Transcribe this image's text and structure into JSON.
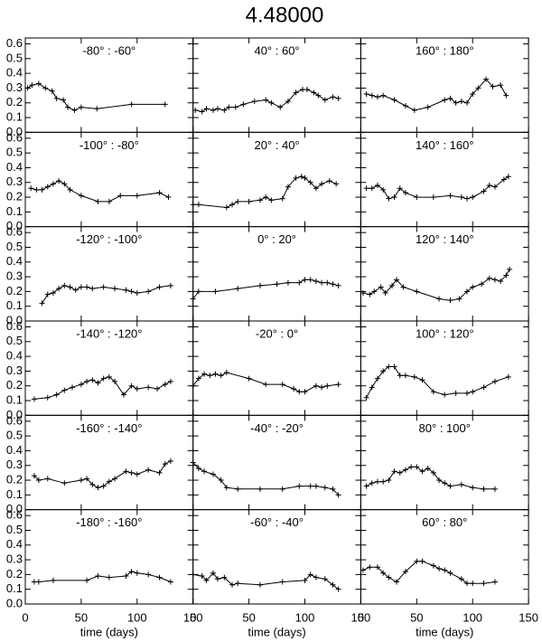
{
  "title": "4.48000",
  "chart_data": [
    {
      "type": "line",
      "title": "-80° : -60°",
      "x": [
        2,
        6,
        12,
        18,
        24,
        28,
        34,
        38,
        44,
        50,
        64,
        95,
        125
      ],
      "values": [
        0.3,
        0.32,
        0.33,
        0.3,
        0.28,
        0.23,
        0.22,
        0.17,
        0.15,
        0.17,
        0.16,
        0.19,
        0.19
      ],
      "color": "#000000",
      "xlim": [
        0,
        150
      ],
      "ylim": [
        0,
        0.64
      ],
      "xticks": [
        0,
        50,
        100,
        150
      ],
      "yticks": [
        {
          "value": 0,
          "label": "0.0"
        },
        0.1,
        0.2,
        0.3,
        0.4,
        0.5,
        0.6
      ]
    },
    {
      "type": "line",
      "title": "-100° : -80°",
      "x": [
        5,
        10,
        15,
        20,
        25,
        30,
        35,
        40,
        50,
        65,
        75,
        85,
        100,
        120,
        128
      ],
      "values": [
        0.26,
        0.25,
        0.25,
        0.27,
        0.29,
        0.31,
        0.29,
        0.25,
        0.21,
        0.17,
        0.17,
        0.21,
        0.21,
        0.23,
        0.2
      ],
      "color": "#000000",
      "xlim": [
        0,
        150
      ],
      "ylim": [
        0,
        0.64
      ],
      "xticks": [
        0,
        50,
        100,
        150
      ],
      "yticks": [
        {
          "value": 0,
          "label": "0.0"
        },
        0.1,
        0.2,
        0.3,
        0.4,
        0.5,
        0.6
      ]
    },
    {
      "type": "line",
      "title": "-120° : -100°",
      "x": [
        15,
        20,
        25,
        30,
        35,
        40,
        45,
        50,
        55,
        60,
        70,
        80,
        90,
        95,
        100,
        110,
        120,
        130
      ],
      "values": [
        0.12,
        0.18,
        0.19,
        0.22,
        0.24,
        0.23,
        0.21,
        0.23,
        0.23,
        0.22,
        0.23,
        0.22,
        0.21,
        0.2,
        0.19,
        0.2,
        0.23,
        0.24
      ],
      "color": "#000000",
      "xlim": [
        0,
        150
      ],
      "ylim": [
        0,
        0.64
      ],
      "xticks": [
        0,
        50,
        100,
        150
      ],
      "yticks": [
        {
          "value": 0,
          "label": "0.0"
        },
        0.1,
        0.2,
        0.3,
        0.4,
        0.5,
        0.6
      ]
    },
    {
      "type": "line",
      "title": "-140° : -120°",
      "x": [
        8,
        20,
        28,
        35,
        42,
        50,
        55,
        60,
        65,
        70,
        75,
        80,
        88,
        95,
        100,
        110,
        118,
        125,
        130
      ],
      "values": [
        0.11,
        0.12,
        0.14,
        0.17,
        0.19,
        0.21,
        0.23,
        0.24,
        0.22,
        0.25,
        0.26,
        0.23,
        0.14,
        0.2,
        0.18,
        0.19,
        0.18,
        0.21,
        0.23
      ],
      "color": "#000000",
      "xlim": [
        0,
        150
      ],
      "ylim": [
        0,
        0.64
      ],
      "xticks": [
        0,
        50,
        100,
        150
      ],
      "yticks": [
        {
          "value": 0,
          "label": "0.0"
        },
        0.1,
        0.2,
        0.3,
        0.4,
        0.5,
        0.6
      ]
    },
    {
      "type": "line",
      "title": "-160° : -140°",
      "x": [
        8,
        12,
        20,
        35,
        50,
        55,
        60,
        65,
        70,
        75,
        80,
        90,
        95,
        100,
        110,
        120,
        125,
        130
      ],
      "values": [
        0.23,
        0.2,
        0.21,
        0.18,
        0.2,
        0.21,
        0.17,
        0.15,
        0.16,
        0.19,
        0.21,
        0.26,
        0.25,
        0.24,
        0.27,
        0.25,
        0.31,
        0.33
      ],
      "color": "#000000",
      "xlim": [
        0,
        150
      ],
      "ylim": [
        0,
        0.64
      ],
      "xticks": [
        0,
        50,
        100,
        150
      ],
      "yticks": [
        {
          "value": 0,
          "label": "0.0"
        },
        0.1,
        0.2,
        0.3,
        0.4,
        0.5,
        0.6
      ]
    },
    {
      "type": "line",
      "title": "-180° : -160°",
      "x_label": "time (days)",
      "x": [
        8,
        12,
        25,
        55,
        65,
        75,
        90,
        95,
        100,
        110,
        120,
        130
      ],
      "values": [
        0.15,
        0.15,
        0.16,
        0.16,
        0.19,
        0.18,
        0.19,
        0.22,
        0.21,
        0.2,
        0.18,
        0.15
      ],
      "color": "#000000",
      "xlim": [
        0,
        150
      ],
      "ylim": [
        0,
        0.64
      ],
      "xticks": [
        0,
        50,
        100,
        150
      ],
      "yticks": [
        {
          "value": 0,
          "label": "0.0"
        },
        0.1,
        0.2,
        0.3,
        0.4,
        0.5,
        0.6
      ]
    },
    {
      "type": "line",
      "title": "40° : 60°",
      "x": [
        2,
        8,
        12,
        18,
        22,
        28,
        32,
        38,
        45,
        55,
        65,
        70,
        78,
        85,
        92,
        98,
        102,
        108,
        112,
        118,
        125,
        130
      ],
      "values": [
        0.15,
        0.14,
        0.16,
        0.15,
        0.16,
        0.15,
        0.17,
        0.17,
        0.19,
        0.21,
        0.22,
        0.2,
        0.17,
        0.21,
        0.27,
        0.29,
        0.29,
        0.27,
        0.25,
        0.22,
        0.24,
        0.23
      ],
      "color": "#000000",
      "xlim": [
        0,
        150
      ],
      "ylim": [
        0,
        0.64
      ],
      "xticks": [
        0,
        50,
        100,
        150
      ],
      "yticks": [
        {
          "value": 0,
          "label": "0.0"
        },
        0.1,
        0.2,
        0.3,
        0.4,
        0.5,
        0.6
      ]
    },
    {
      "type": "line",
      "title": "20° : 40°",
      "x": [
        0,
        5,
        30,
        35,
        40,
        50,
        60,
        65,
        70,
        80,
        85,
        92,
        97,
        100,
        105,
        110,
        115,
        122,
        128
      ],
      "values": [
        0.15,
        0.15,
        0.13,
        0.15,
        0.17,
        0.17,
        0.18,
        0.2,
        0.18,
        0.19,
        0.27,
        0.33,
        0.34,
        0.33,
        0.3,
        0.26,
        0.29,
        0.31,
        0.29
      ],
      "color": "#000000",
      "xlim": [
        0,
        150
      ],
      "ylim": [
        0,
        0.64
      ],
      "xticks": [
        0,
        50,
        100,
        150
      ],
      "yticks": [
        {
          "value": 0,
          "label": "0.0"
        },
        0.1,
        0.2,
        0.3,
        0.4,
        0.5,
        0.6
      ]
    },
    {
      "type": "line",
      "title": "0° : 20°",
      "x": [
        0,
        5,
        20,
        40,
        60,
        75,
        85,
        95,
        100,
        105,
        110,
        115,
        120,
        125,
        130
      ],
      "values": [
        0.15,
        0.2,
        0.2,
        0.22,
        0.24,
        0.25,
        0.26,
        0.26,
        0.28,
        0.28,
        0.27,
        0.26,
        0.26,
        0.25,
        0.24
      ],
      "color": "#000000",
      "xlim": [
        0,
        150
      ],
      "ylim": [
        0,
        0.64
      ],
      "xticks": [
        0,
        50,
        100,
        150
      ],
      "yticks": [
        {
          "value": 0,
          "label": "0.0"
        },
        0.1,
        0.2,
        0.3,
        0.4,
        0.5,
        0.6
      ]
    },
    {
      "type": "line",
      "title": "-20° : 0°",
      "x": [
        0,
        5,
        10,
        15,
        20,
        25,
        30,
        50,
        65,
        80,
        90,
        95,
        100,
        110,
        115,
        120,
        130
      ],
      "values": [
        0.2,
        0.25,
        0.28,
        0.27,
        0.28,
        0.27,
        0.29,
        0.25,
        0.21,
        0.21,
        0.18,
        0.16,
        0.16,
        0.2,
        0.19,
        0.2,
        0.21
      ],
      "color": "#000000",
      "xlim": [
        0,
        150
      ],
      "ylim": [
        0,
        0.64
      ],
      "xticks": [
        0,
        50,
        100,
        150
      ],
      "yticks": [
        {
          "value": 0,
          "label": "0.0"
        },
        0.1,
        0.2,
        0.3,
        0.4,
        0.5,
        0.6
      ]
    },
    {
      "type": "line",
      "title": "-40° : -20°",
      "x": [
        0,
        5,
        10,
        18,
        25,
        30,
        40,
        60,
        80,
        95,
        105,
        110,
        118,
        125,
        130
      ],
      "values": [
        0.32,
        0.28,
        0.26,
        0.24,
        0.2,
        0.15,
        0.14,
        0.14,
        0.14,
        0.16,
        0.16,
        0.16,
        0.15,
        0.14,
        0.1
      ],
      "color": "#000000",
      "xlim": [
        0,
        150
      ],
      "ylim": [
        0,
        0.64
      ],
      "xticks": [
        0,
        50,
        100,
        150
      ],
      "yticks": [
        {
          "value": 0,
          "label": "0.0"
        },
        0.1,
        0.2,
        0.3,
        0.4,
        0.5,
        0.6
      ]
    },
    {
      "type": "line",
      "title": "-60° : -40°",
      "x_label": "time (days)",
      "x": [
        0,
        8,
        12,
        18,
        22,
        28,
        35,
        40,
        60,
        80,
        100,
        105,
        110,
        118,
        125,
        130
      ],
      "values": [
        0.2,
        0.19,
        0.16,
        0.21,
        0.17,
        0.18,
        0.13,
        0.14,
        0.13,
        0.15,
        0.16,
        0.2,
        0.18,
        0.17,
        0.13,
        0.1
      ],
      "color": "#000000",
      "xlim": [
        0,
        150
      ],
      "ylim": [
        0,
        0.64
      ],
      "xticks": [
        0,
        50,
        100,
        150
      ],
      "yticks": [
        {
          "value": 0,
          "label": "0.0"
        },
        0.1,
        0.2,
        0.3,
        0.4,
        0.5,
        0.6
      ]
    },
    {
      "type": "line",
      "title": "160° : 180°",
      "x": [
        5,
        10,
        15,
        20,
        30,
        40,
        48,
        60,
        75,
        80,
        85,
        90,
        95,
        100,
        105,
        112,
        118,
        125,
        130
      ],
      "values": [
        0.26,
        0.25,
        0.24,
        0.25,
        0.22,
        0.18,
        0.15,
        0.17,
        0.22,
        0.23,
        0.2,
        0.21,
        0.2,
        0.26,
        0.3,
        0.36,
        0.31,
        0.32,
        0.25
      ],
      "color": "#000000",
      "xlim": [
        0,
        150
      ],
      "ylim": [
        0,
        0.64
      ],
      "xticks": [
        0,
        50,
        100,
        150
      ],
      "yticks": [
        {
          "value": 0,
          "label": "0.0"
        },
        0.1,
        0.2,
        0.3,
        0.4,
        0.5,
        0.6
      ]
    },
    {
      "type": "line",
      "title": "140° : 160°",
      "x": [
        5,
        10,
        15,
        20,
        25,
        30,
        35,
        40,
        50,
        65,
        80,
        90,
        95,
        100,
        110,
        115,
        120,
        128,
        132
      ],
      "values": [
        0.26,
        0.26,
        0.28,
        0.25,
        0.19,
        0.2,
        0.26,
        0.23,
        0.2,
        0.2,
        0.21,
        0.2,
        0.19,
        0.2,
        0.24,
        0.28,
        0.27,
        0.32,
        0.34
      ],
      "color": "#000000",
      "xlim": [
        0,
        150
      ],
      "ylim": [
        0,
        0.64
      ],
      "xticks": [
        0,
        50,
        100,
        150
      ],
      "yticks": [
        {
          "value": 0,
          "label": "0.0"
        },
        0.1,
        0.2,
        0.3,
        0.4,
        0.5,
        0.6
      ]
    },
    {
      "type": "line",
      "title": "120° : 140°",
      "x": [
        2,
        8,
        12,
        18,
        22,
        28,
        32,
        38,
        50,
        70,
        80,
        88,
        95,
        100,
        108,
        115,
        120,
        125,
        130,
        133
      ],
      "values": [
        0.19,
        0.18,
        0.2,
        0.23,
        0.19,
        0.24,
        0.28,
        0.23,
        0.2,
        0.15,
        0.14,
        0.15,
        0.2,
        0.23,
        0.25,
        0.29,
        0.28,
        0.27,
        0.31,
        0.35
      ],
      "color": "#000000",
      "xlim": [
        0,
        150
      ],
      "ylim": [
        0,
        0.64
      ],
      "xticks": [
        0,
        50,
        100,
        150
      ],
      "yticks": [
        {
          "value": 0,
          "label": "0.0"
        },
        0.1,
        0.2,
        0.3,
        0.4,
        0.5,
        0.6
      ]
    },
    {
      "type": "line",
      "title": "100° : 120°",
      "x": [
        5,
        10,
        15,
        20,
        25,
        30,
        35,
        40,
        48,
        55,
        65,
        75,
        85,
        95,
        100,
        110,
        120,
        132
      ],
      "values": [
        0.12,
        0.19,
        0.25,
        0.3,
        0.33,
        0.33,
        0.27,
        0.27,
        0.26,
        0.24,
        0.16,
        0.14,
        0.15,
        0.15,
        0.16,
        0.19,
        0.23,
        0.26
      ],
      "color": "#000000",
      "xlim": [
        0,
        150
      ],
      "ylim": [
        0,
        0.64
      ],
      "xticks": [
        0,
        50,
        100,
        150
      ],
      "yticks": [
        {
          "value": 0,
          "label": "0.0"
        },
        0.1,
        0.2,
        0.3,
        0.4,
        0.5,
        0.6
      ]
    },
    {
      "type": "line",
      "title": "80° : 100°",
      "x": [
        5,
        10,
        15,
        20,
        25,
        30,
        35,
        40,
        45,
        50,
        55,
        60,
        65,
        70,
        75,
        80,
        90,
        100,
        110,
        120
      ],
      "values": [
        0.16,
        0.18,
        0.19,
        0.19,
        0.2,
        0.26,
        0.25,
        0.27,
        0.29,
        0.29,
        0.26,
        0.28,
        0.25,
        0.2,
        0.18,
        0.16,
        0.17,
        0.15,
        0.14,
        0.14
      ],
      "color": "#000000",
      "xlim": [
        0,
        150
      ],
      "ylim": [
        0,
        0.64
      ],
      "xticks": [
        0,
        50,
        100,
        150
      ],
      "yticks": [
        {
          "value": 0,
          "label": "0.0"
        },
        0.1,
        0.2,
        0.3,
        0.4,
        0.5,
        0.6
      ]
    },
    {
      "type": "line",
      "title": "60° : 80°",
      "x_label": "time (days)",
      "x": [
        2,
        8,
        15,
        20,
        25,
        32,
        40,
        50,
        55,
        65,
        70,
        75,
        80,
        90,
        95,
        100,
        110,
        120
      ],
      "values": [
        0.23,
        0.25,
        0.25,
        0.21,
        0.18,
        0.15,
        0.22,
        0.29,
        0.29,
        0.26,
        0.24,
        0.23,
        0.21,
        0.17,
        0.14,
        0.14,
        0.14,
        0.15
      ],
      "color": "#000000",
      "xlim": [
        0,
        150
      ],
      "ylim": [
        0,
        0.64
      ],
      "xticks": [
        0,
        50,
        100,
        150
      ],
      "yticks": [
        {
          "value": 0,
          "label": "0.0"
        },
        0.1,
        0.2,
        0.3,
        0.4,
        0.5,
        0.6
      ]
    }
  ]
}
